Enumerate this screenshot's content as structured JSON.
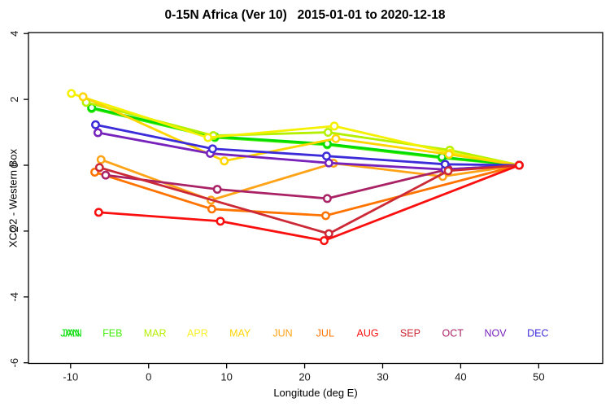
{
  "chart_data": {
    "type": "line",
    "title": "0-15N Africa (Ver 10)   2015-01-01 to 2020-12-18",
    "xlabel": "Longitude (deg E)",
    "ylabel": "XCO2 - Western Box",
    "x_ticks": [
      -10,
      0,
      10,
      20,
      30,
      40,
      50
    ],
    "y_ticks": [
      4,
      2,
      0,
      -2,
      -4,
      -6
    ],
    "xlim": [
      -15.4,
      58.2
    ],
    "ylim": [
      -6.02,
      4.03
    ],
    "grid": false,
    "marker": "open-circle-white-fill",
    "legend_position": "bottom-inside-row",
    "months": [
      {
        "label": "JAN",
        "color": "#00DC00",
        "doubled": true
      },
      {
        "label": "FEB",
        "color": "#45EE0F",
        "doubled": false
      },
      {
        "label": "MAR",
        "color": "#B4F000",
        "doubled": false
      },
      {
        "label": "APR",
        "color": "#F7F025",
        "doubled": false
      },
      {
        "label": "MAY",
        "color": "#FFD500",
        "doubled": false
      },
      {
        "label": "JUN",
        "color": "#FFA319",
        "doubled": false
      },
      {
        "label": "JUL",
        "color": "#FF7300",
        "doubled": false
      },
      {
        "label": "AUG",
        "color": "#FA0F0F",
        "doubled": false
      },
      {
        "label": "SEP",
        "color": "#CC2936",
        "doubled": false
      },
      {
        "label": "OCT",
        "color": "#AA2266",
        "doubled": false
      },
      {
        "label": "NOV",
        "color": "#7722BB",
        "doubled": false
      },
      {
        "label": "DEC",
        "color": "#3B2BD9",
        "doubled": false
      }
    ],
    "series": [
      {
        "name": "FEB",
        "color": "#45EE0F",
        "points": [
          [
            -7.3,
            1.72
          ],
          [
            8.5,
            0.84
          ],
          [
            22.9,
            0.62
          ],
          [
            37.6,
            0.22
          ],
          [
            47.5,
            0.0
          ]
        ]
      },
      {
        "name": "JAN",
        "color": "#00DC00",
        "points": [
          [
            -7.3,
            1.75
          ],
          [
            8.5,
            0.87
          ],
          [
            22.9,
            0.65
          ],
          [
            37.6,
            0.25
          ],
          [
            47.5,
            0.0
          ]
        ]
      },
      {
        "name": "MAR",
        "color": "#B4F000",
        "points": [
          [
            -8.0,
            1.91
          ],
          [
            8.3,
            0.9
          ],
          [
            23.0,
            1.0
          ],
          [
            38.6,
            0.46
          ],
          [
            47.5,
            0.0
          ]
        ]
      },
      {
        "name": "APR",
        "color": "#F5F000",
        "points": [
          [
            -9.9,
            2.18
          ],
          [
            7.6,
            0.84
          ],
          [
            23.8,
            1.19
          ],
          [
            38.7,
            0.37
          ],
          [
            47.5,
            0.0
          ]
        ]
      },
      {
        "name": "MAY",
        "color": "#FFD500",
        "points": [
          [
            -8.4,
            2.08
          ],
          [
            9.7,
            0.13
          ],
          [
            24.0,
            0.81
          ],
          [
            38.5,
            0.33
          ],
          [
            47.5,
            0.0
          ]
        ]
      },
      {
        "name": "JUN",
        "color": "#FFA319",
        "points": [
          [
            -6.1,
            0.17
          ],
          [
            8.0,
            -1.06
          ],
          [
            23.7,
            0.06
          ],
          [
            37.7,
            -0.34
          ],
          [
            47.5,
            0.0
          ]
        ]
      },
      {
        "name": "JUL",
        "color": "#FF7300",
        "points": [
          [
            -6.9,
            -0.21
          ],
          [
            8.1,
            -1.33
          ],
          [
            22.7,
            -1.53
          ],
          [
            47.5,
            0.0
          ]
        ]
      },
      {
        "name": "OCT",
        "color": "#AA2266",
        "points": [
          [
            -5.5,
            -0.3
          ],
          [
            8.8,
            -0.73
          ],
          [
            22.9,
            -1.01
          ],
          [
            38.4,
            -0.12
          ],
          [
            47.5,
            0.0
          ]
        ]
      },
      {
        "name": "NOV",
        "color": "#7722BB",
        "points": [
          [
            -6.5,
            0.99
          ],
          [
            7.9,
            0.36
          ],
          [
            23.1,
            0.07
          ],
          [
            38.0,
            -0.13
          ],
          [
            47.5,
            0.0
          ]
        ]
      },
      {
        "name": "DEC",
        "color": "#3B2BD9",
        "points": [
          [
            -6.8,
            1.23
          ],
          [
            8.2,
            0.5
          ],
          [
            22.8,
            0.28
          ],
          [
            38.0,
            0.03
          ],
          [
            47.5,
            0.0
          ]
        ]
      },
      {
        "name": "SEP",
        "color": "#CC2936",
        "points": [
          [
            -6.3,
            -0.07
          ],
          [
            23.1,
            -2.08
          ],
          [
            38.4,
            -0.17
          ],
          [
            47.5,
            0.0
          ]
        ]
      },
      {
        "name": "AUG",
        "color": "#FA0F0F",
        "points": [
          [
            -6.4,
            -1.43
          ],
          [
            9.2,
            -1.7
          ],
          [
            22.5,
            -2.29
          ],
          [
            47.5,
            0.0
          ]
        ]
      }
    ]
  },
  "frame": {
    "background": "#FFFFFF",
    "axis_color": "#000000",
    "tick_label_color": "#1A1A1A"
  }
}
